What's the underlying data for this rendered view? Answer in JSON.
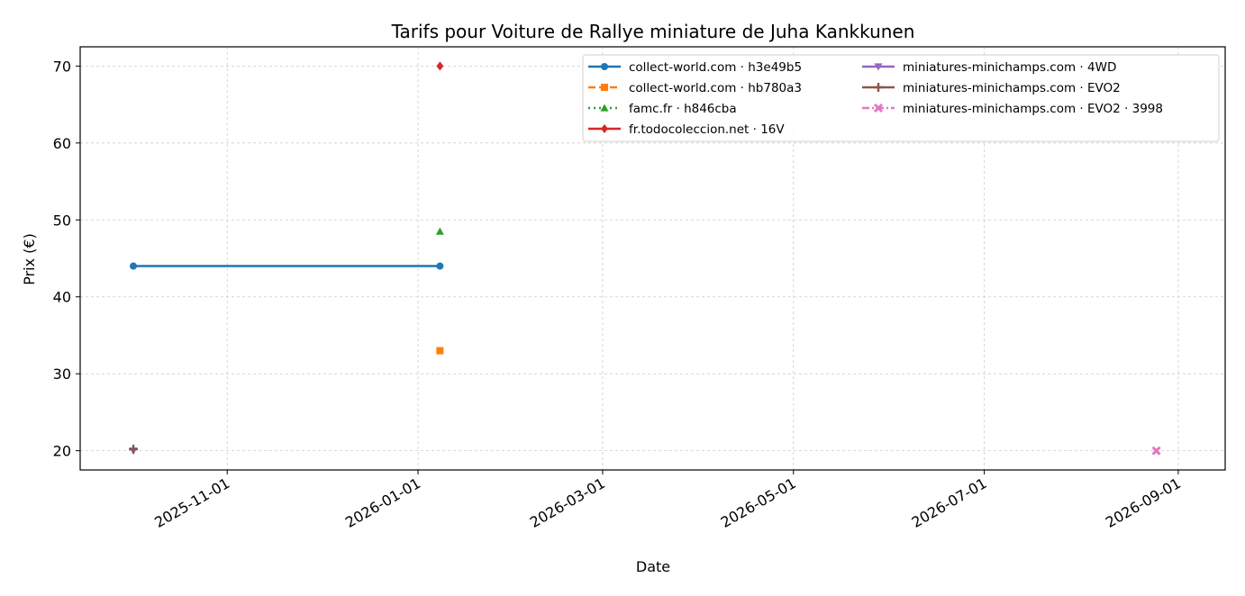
{
  "chart_data": {
    "type": "line",
    "title": "Tarifs pour Voiture de Rallye miniature de Juha Kankkunen",
    "xlabel": "Date",
    "ylabel": "Prix (€)",
    "x_type": "date",
    "xlim": [
      "2025-09-15",
      "2026-09-16"
    ],
    "ylim": [
      17.5,
      72.5
    ],
    "x_ticks": [
      "2025-11-01",
      "2026-01-01",
      "2026-03-01",
      "2026-05-01",
      "2026-07-01",
      "2026-09-01"
    ],
    "y_ticks": [
      20,
      30,
      40,
      50,
      60,
      70
    ],
    "grid": true,
    "legend_position": "top-right",
    "legend_columns": 2,
    "series": [
      {
        "name": "collect-world.com · h3e49b5",
        "color": "#1f77b4",
        "marker": "circle",
        "linestyle": "solid",
        "points": [
          {
            "x": "2025-10-02",
            "y": 44
          },
          {
            "x": "2026-01-08",
            "y": 44
          }
        ]
      },
      {
        "name": "collect-world.com · hb780a3",
        "color": "#ff7f0e",
        "marker": "square",
        "linestyle": "dashed",
        "points": [
          {
            "x": "2026-01-08",
            "y": 33
          }
        ]
      },
      {
        "name": "famc.fr · h846cba",
        "color": "#2ca02c",
        "marker": "triangle-up",
        "linestyle": "dotted",
        "points": [
          {
            "x": "2026-01-08",
            "y": 48.5
          }
        ]
      },
      {
        "name": "fr.todocoleccion.net · 16V",
        "color": "#d62728",
        "marker": "diamond",
        "linestyle": "solid",
        "points": [
          {
            "x": "2026-01-08",
            "y": 70
          }
        ]
      },
      {
        "name": "miniatures-minichamps.com · 4WD",
        "color": "#9467bd",
        "marker": "triangle-down",
        "linestyle": "solid",
        "points": [
          {
            "x": "2025-10-02",
            "y": 20
          }
        ]
      },
      {
        "name": "miniatures-minichamps.com · EVO2",
        "color": "#8c564b",
        "marker": "plus",
        "linestyle": "solid",
        "points": [
          {
            "x": "2025-10-02",
            "y": 20.2
          }
        ]
      },
      {
        "name": "miniatures-minichamps.com · EVO2 · 3998",
        "color": "#e377c2",
        "marker": "x",
        "linestyle": "dashdot",
        "points": [
          {
            "x": "2026-08-25",
            "y": 20
          }
        ]
      }
    ]
  }
}
